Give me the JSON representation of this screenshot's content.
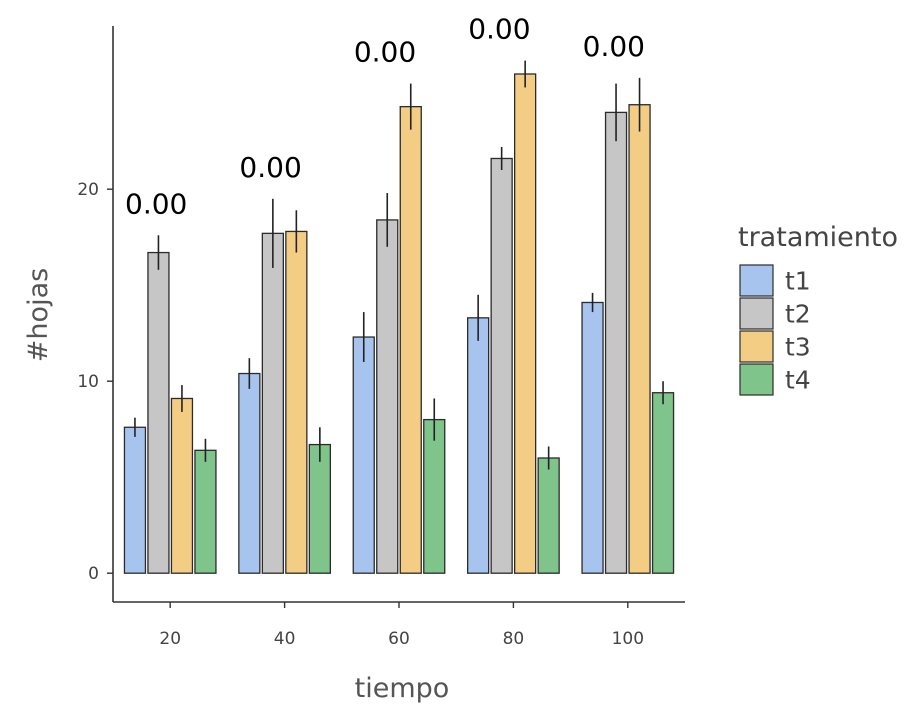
{
  "chart_data": {
    "type": "bar",
    "xlabel": "tiempo",
    "ylabel": "#hojas",
    "categories": [
      "20",
      "40",
      "60",
      "80",
      "100"
    ],
    "ylim": [
      -1.5,
      28.5
    ],
    "yticks": [
      0,
      10,
      20
    ],
    "grid": false,
    "legend": {
      "title": "tratamiento",
      "position": "right"
    },
    "series": [
      {
        "name": "t1",
        "color": "#a7c4ef",
        "values": [
          7.6,
          10.4,
          12.3,
          13.3,
          14.1
        ],
        "errors": [
          0.5,
          0.8,
          1.3,
          1.2,
          0.5
        ]
      },
      {
        "name": "t2",
        "color": "#c6c6c6",
        "values": [
          16.7,
          17.7,
          18.4,
          21.6,
          24.0
        ],
        "errors": [
          0.9,
          1.8,
          1.4,
          0.6,
          1.5
        ]
      },
      {
        "name": "t3",
        "color": "#f4cd84",
        "values": [
          9.1,
          17.8,
          24.3,
          26.0,
          24.4
        ],
        "errors": [
          0.7,
          1.1,
          1.2,
          0.7,
          1.4
        ]
      },
      {
        "name": "t4",
        "color": "#7fc48a",
        "values": [
          6.4,
          6.7,
          8.0,
          6.0,
          9.4
        ],
        "errors": [
          0.6,
          0.9,
          1.1,
          0.6,
          0.6
        ]
      }
    ],
    "annotations": [
      "0.00",
      "0.00",
      "0.00",
      "0.00",
      "0.00"
    ]
  }
}
